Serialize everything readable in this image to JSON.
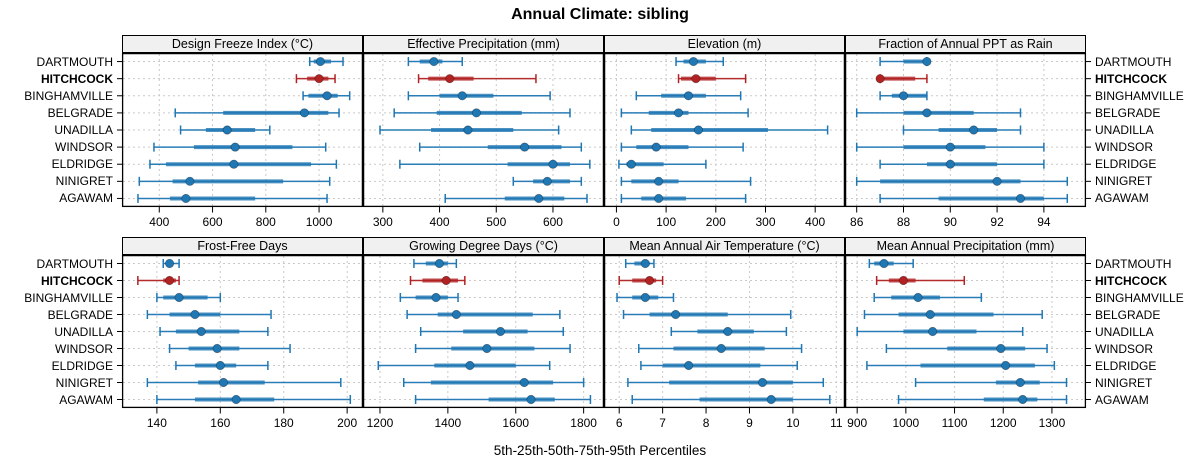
{
  "title": "Annual Climate: sibling",
  "caption": "5th-25th-50th-75th-95th Percentiles",
  "sites": [
    "DARTMOUTH",
    "HITCHCOCK",
    "BINGHAMVILLE",
    "BELGRADE",
    "UNADILLA",
    "WINDSOR",
    "ELDRIDGE",
    "NINIGRET",
    "AGAWAM"
  ],
  "highlight_site": "HITCHCOCK",
  "percentile_labels": [
    "5th",
    "25th",
    "50th",
    "75th",
    "95th"
  ],
  "colors": {
    "series_default": "#1f77b4",
    "series_highlight": "#b22222",
    "gridline": "#c9c9c9",
    "strip_background": "#f0f0f0",
    "panel_border": "#000000"
  },
  "chart_data": [
    {
      "type": "dot-interval",
      "title": "Design Freeze Index (°C)",
      "xlim": [
        260,
        1165
      ],
      "ticks": [
        400,
        600,
        800,
        1000
      ],
      "series": [
        {
          "name": "DARTMOUTH",
          "values": [
            965,
            980,
            1005,
            1045,
            1090
          ]
        },
        {
          "name": "HITCHCOCK",
          "values": [
            915,
            955,
            1000,
            1035,
            1060
          ]
        },
        {
          "name": "BINGHAMVILLE",
          "values": [
            940,
            960,
            1030,
            1070,
            1115
          ]
        },
        {
          "name": "BELGRADE",
          "values": [
            460,
            640,
            945,
            1035,
            1075
          ]
        },
        {
          "name": "UNADILLA",
          "values": [
            480,
            575,
            655,
            760,
            815
          ]
        },
        {
          "name": "WINDSOR",
          "values": [
            380,
            530,
            685,
            900,
            1025
          ]
        },
        {
          "name": "ELDRIDGE",
          "values": [
            365,
            425,
            680,
            970,
            1065
          ]
        },
        {
          "name": "NINIGRET",
          "values": [
            325,
            450,
            515,
            865,
            1040
          ]
        },
        {
          "name": "AGAWAM",
          "values": [
            320,
            440,
            500,
            760,
            1030
          ]
        }
      ]
    },
    {
      "type": "dot-interval",
      "title": "Effective Precipitation (mm)",
      "xlim": [
        265,
        690
      ],
      "ticks": [
        300,
        400,
        500,
        600
      ],
      "series": [
        {
          "name": "DARTMOUTH",
          "values": [
            345,
            365,
            390,
            405,
            440
          ]
        },
        {
          "name": "HITCHCOCK",
          "values": [
            363,
            380,
            418,
            460,
            570
          ]
        },
        {
          "name": "BINGHAMVILLE",
          "values": [
            345,
            400,
            440,
            495,
            595
          ]
        },
        {
          "name": "BELGRADE",
          "values": [
            320,
            395,
            465,
            545,
            630
          ]
        },
        {
          "name": "UNADILLA",
          "values": [
            295,
            385,
            450,
            530,
            610
          ]
        },
        {
          "name": "WINDSOR",
          "values": [
            365,
            485,
            550,
            615,
            650
          ]
        },
        {
          "name": "ELDRIDGE",
          "values": [
            330,
            520,
            600,
            630,
            665
          ]
        },
        {
          "name": "NINIGRET",
          "values": [
            530,
            565,
            590,
            630,
            650
          ]
        },
        {
          "name": "AGAWAM",
          "values": [
            410,
            515,
            575,
            620,
            660
          ]
        }
      ]
    },
    {
      "type": "dot-interval",
      "title": "Elevation (m)",
      "xlim": [
        -25,
        460
      ],
      "ticks": [
        0,
        100,
        200,
        300,
        400
      ],
      "series": [
        {
          "name": "DARTMOUTH",
          "values": [
            120,
            135,
            155,
            180,
            215
          ]
        },
        {
          "name": "HITCHCOCK",
          "values": [
            125,
            130,
            160,
            200,
            260
          ]
        },
        {
          "name": "BINGHAMVILLE",
          "values": [
            40,
            90,
            145,
            180,
            250
          ]
        },
        {
          "name": "BELGRADE",
          "values": [
            10,
            65,
            125,
            145,
            265
          ]
        },
        {
          "name": "UNADILLA",
          "values": [
            30,
            70,
            165,
            305,
            425
          ]
        },
        {
          "name": "WINDSOR",
          "values": [
            10,
            40,
            80,
            145,
            255
          ]
        },
        {
          "name": "ELDRIDGE",
          "values": [
            5,
            20,
            30,
            95,
            180
          ]
        },
        {
          "name": "NINIGRET",
          "values": [
            10,
            30,
            85,
            125,
            270
          ]
        },
        {
          "name": "AGAWAM",
          "values": [
            10,
            50,
            85,
            140,
            260
          ]
        }
      ]
    },
    {
      "type": "dot-interval",
      "title": "Fraction of Annual PPT as Rain",
      "xlim": [
        85.5,
        95.8
      ],
      "ticks": [
        86,
        88,
        90,
        92,
        94
      ],
      "series": [
        {
          "name": "DARTMOUTH",
          "values": [
            87,
            88,
            89,
            89,
            89
          ]
        },
        {
          "name": "HITCHCOCK",
          "values": [
            87,
            87,
            87,
            88.5,
            89
          ]
        },
        {
          "name": "BINGHAMVILLE",
          "values": [
            87,
            87.5,
            88,
            89,
            89
          ]
        },
        {
          "name": "BELGRADE",
          "values": [
            86,
            88,
            89,
            91,
            93
          ]
        },
        {
          "name": "UNADILLA",
          "values": [
            88,
            89.5,
            91,
            92,
            93
          ]
        },
        {
          "name": "WINDSOR",
          "values": [
            86,
            88,
            90,
            91.5,
            94
          ]
        },
        {
          "name": "ELDRIDGE",
          "values": [
            87,
            89,
            90,
            92,
            94
          ]
        },
        {
          "name": "NINIGRET",
          "values": [
            86,
            87,
            92,
            93,
            95
          ]
        },
        {
          "name": "AGAWAM",
          "values": [
            87,
            89.5,
            93,
            94,
            95
          ]
        }
      ]
    },
    {
      "type": "dot-interval",
      "title": "Frost-Free Days",
      "xlim": [
        129,
        205
      ],
      "ticks": [
        140,
        160,
        180,
        200
      ],
      "series": [
        {
          "name": "DARTMOUTH",
          "values": [
            142,
            143,
            144,
            145,
            147
          ]
        },
        {
          "name": "HITCHCOCK",
          "values": [
            134,
            142,
            144,
            146,
            147
          ]
        },
        {
          "name": "BINGHAMVILLE",
          "values": [
            140,
            142,
            147,
            156,
            160
          ]
        },
        {
          "name": "BELGRADE",
          "values": [
            137,
            144,
            152,
            160,
            176
          ]
        },
        {
          "name": "UNADILLA",
          "values": [
            141,
            146,
            154,
            166,
            175
          ]
        },
        {
          "name": "WINDSOR",
          "values": [
            144,
            150,
            159,
            166,
            182
          ]
        },
        {
          "name": "ELDRIDGE",
          "values": [
            146,
            152,
            160,
            165,
            175
          ]
        },
        {
          "name": "NINIGRET",
          "values": [
            137,
            153,
            161,
            174,
            198
          ]
        },
        {
          "name": "AGAWAM",
          "values": [
            140,
            152,
            165,
            177,
            201
          ]
        }
      ]
    },
    {
      "type": "dot-interval",
      "title": "Growing Degree Days (°C)",
      "xlim": [
        1150,
        1860
      ],
      "ticks": [
        1200,
        1400,
        1600,
        1800
      ],
      "series": [
        {
          "name": "DARTMOUTH",
          "values": [
            1300,
            1335,
            1375,
            1400,
            1425
          ]
        },
        {
          "name": "HITCHCOCK",
          "values": [
            1290,
            1325,
            1395,
            1430,
            1450
          ]
        },
        {
          "name": "BINGHAMVILLE",
          "values": [
            1260,
            1305,
            1365,
            1400,
            1430
          ]
        },
        {
          "name": "BELGRADE",
          "values": [
            1280,
            1370,
            1425,
            1650,
            1730
          ]
        },
        {
          "name": "UNADILLA",
          "values": [
            1320,
            1445,
            1555,
            1635,
            1740
          ]
        },
        {
          "name": "WINDSOR",
          "values": [
            1305,
            1410,
            1515,
            1655,
            1760
          ]
        },
        {
          "name": "ELDRIDGE",
          "values": [
            1195,
            1360,
            1465,
            1600,
            1700
          ]
        },
        {
          "name": "NINIGRET",
          "values": [
            1270,
            1350,
            1625,
            1710,
            1800
          ]
        },
        {
          "name": "AGAWAM",
          "values": [
            1305,
            1520,
            1645,
            1715,
            1820
          ]
        }
      ]
    },
    {
      "type": "dot-interval",
      "title": "Mean Annual Air Temperature (°C)",
      "xlim": [
        5.65,
        11.2
      ],
      "ticks": [
        6,
        7,
        8,
        9,
        10,
        11
      ],
      "series": [
        {
          "name": "DARTMOUTH",
          "values": [
            6.15,
            6.35,
            6.6,
            6.7,
            6.8
          ]
        },
        {
          "name": "HITCHCOCK",
          "values": [
            6.0,
            6.3,
            6.7,
            6.85,
            7.0
          ]
        },
        {
          "name": "BINGHAMVILLE",
          "values": [
            5.95,
            6.3,
            6.6,
            6.9,
            7.25
          ]
        },
        {
          "name": "BELGRADE",
          "values": [
            6.1,
            6.7,
            7.3,
            8.5,
            9.95
          ]
        },
        {
          "name": "UNADILLA",
          "values": [
            7.2,
            7.8,
            8.5,
            9.1,
            9.85
          ]
        },
        {
          "name": "WINDSOR",
          "values": [
            6.45,
            7.25,
            8.35,
            9.35,
            10.2
          ]
        },
        {
          "name": "ELDRIDGE",
          "values": [
            6.5,
            7.0,
            7.6,
            9.25,
            10.1
          ]
        },
        {
          "name": "NINIGRET",
          "values": [
            6.2,
            7.15,
            9.3,
            10.0,
            10.7
          ]
        },
        {
          "name": "AGAWAM",
          "values": [
            6.3,
            7.85,
            9.5,
            10.0,
            10.85
          ]
        }
      ]
    },
    {
      "type": "dot-interval",
      "title": "Mean Annual Precipitation (mm)",
      "xlim": [
        875,
        1370
      ],
      "ticks": [
        900,
        1000,
        1100,
        1200,
        1300
      ],
      "series": [
        {
          "name": "DARTMOUTH",
          "values": [
            925,
            935,
            955,
            975,
            1015
          ]
        },
        {
          "name": "HITCHCOCK",
          "values": [
            940,
            965,
            995,
            1020,
            1120
          ]
        },
        {
          "name": "BINGHAMVILLE",
          "values": [
            935,
            970,
            1025,
            1070,
            1155
          ]
        },
        {
          "name": "BELGRADE",
          "values": [
            915,
            985,
            1050,
            1180,
            1280
          ]
        },
        {
          "name": "UNADILLA",
          "values": [
            900,
            995,
            1055,
            1145,
            1240
          ]
        },
        {
          "name": "WINDSOR",
          "values": [
            960,
            1085,
            1195,
            1245,
            1290
          ]
        },
        {
          "name": "ELDRIDGE",
          "values": [
            920,
            1030,
            1205,
            1265,
            1305
          ]
        },
        {
          "name": "NINIGRET",
          "values": [
            1020,
            1185,
            1235,
            1275,
            1330
          ]
        },
        {
          "name": "AGAWAM",
          "values": [
            985,
            1160,
            1240,
            1270,
            1330
          ]
        }
      ]
    }
  ]
}
